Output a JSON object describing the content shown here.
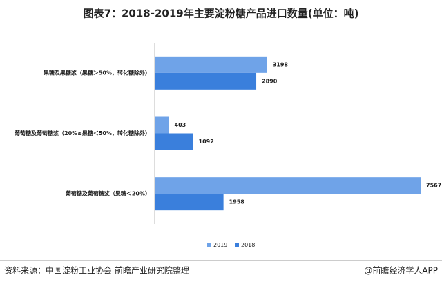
{
  "chart_data": {
    "type": "bar",
    "orientation": "horizontal",
    "title": "图表7：2018-2019年主要淀粉糖产品进口数量(单位：吨)",
    "categories": [
      "果糖及果糖浆（果糖＞50%，转化糖除外）",
      "葡萄糖及葡萄糖浆（20%≤果糖＜50%，转化糖除外）",
      "葡萄糖及葡萄糖浆（果糖＜20%）"
    ],
    "series": [
      {
        "name": "2019",
        "color": "#6fa3e8",
        "values": [
          3198,
          403,
          7567
        ]
      },
      {
        "name": "2018",
        "color": "#3a7fdc",
        "values": [
          2890,
          1092,
          1958
        ]
      }
    ],
    "legend": "bottom",
    "source": "资料来源：中国淀粉工业协会 前瞻产业研究院整理",
    "brand": "@前瞻经济学人APP"
  }
}
